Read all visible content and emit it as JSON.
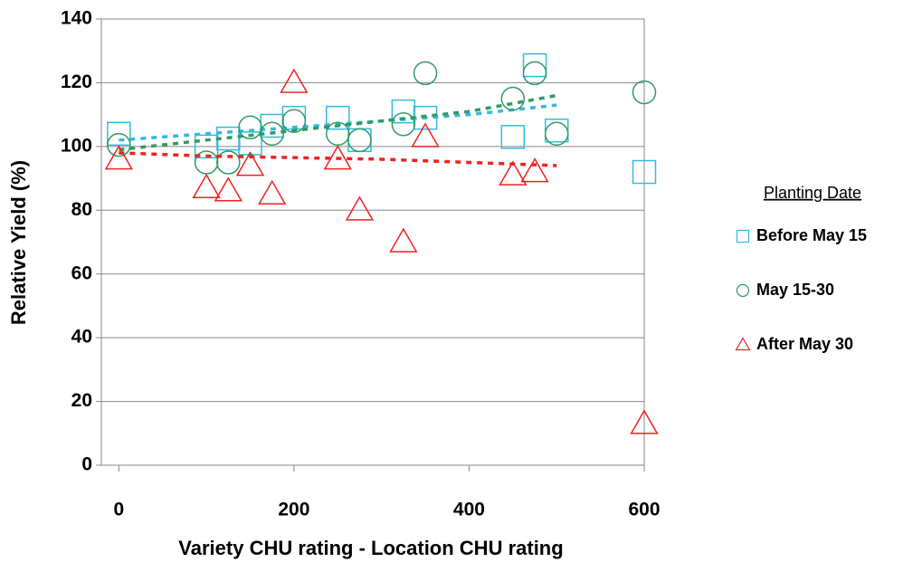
{
  "chart_data": {
    "type": "scatter",
    "xlabel": "Variety CHU rating - Location CHU rating",
    "ylabel": "Relative Yield (%)",
    "legend_title": "Planting Date",
    "legend_position": "right",
    "xlim": [
      -20,
      600
    ],
    "xticks": [
      0,
      200,
      400,
      600
    ],
    "ylim": [
      0,
      140
    ],
    "yticks": [
      0,
      20,
      40,
      60,
      80,
      100,
      120,
      140
    ],
    "grid": true,
    "series": [
      {
        "name": "Before May 15",
        "color": "#33bbdd",
        "marker": "square",
        "x": [
          0,
          100,
          125,
          150,
          175,
          200,
          250,
          275,
          325,
          350,
          450,
          475,
          500,
          600
        ],
        "values": [
          104,
          100,
          102.5,
          101,
          106.5,
          109,
          109,
          102,
          111,
          109,
          103,
          125.5,
          105,
          92
        ],
        "trend": {
          "x": [
            0,
            100,
            200,
            300,
            400,
            500
          ],
          "values": [
            102,
            104,
            106,
            108,
            110,
            113
          ]
        }
      },
      {
        "name": "May 15-30",
        "color": "#339966",
        "marker": "circle",
        "x": [
          0,
          100,
          125,
          150,
          175,
          200,
          250,
          275,
          325,
          350,
          450,
          475,
          500,
          600
        ],
        "values": [
          100.5,
          95,
          95,
          106,
          104,
          108,
          104,
          102,
          107,
          123,
          115,
          123,
          104,
          117
        ],
        "trend": {
          "x": [
            0,
            100,
            200,
            300,
            400,
            500
          ],
          "values": [
            99,
            102,
            105,
            108,
            111,
            116
          ]
        }
      },
      {
        "name": "After May 30",
        "color": "#ee2222",
        "marker": "triangle",
        "x": [
          0,
          100,
          125,
          150,
          175,
          200,
          250,
          275,
          325,
          350,
          450,
          475,
          600
        ],
        "values": [
          96,
          87,
          86,
          94,
          85,
          120,
          96,
          80,
          70,
          103,
          91,
          92,
          13
        ],
        "trend": {
          "x": [
            0,
            100,
            200,
            300,
            400,
            500
          ],
          "values": [
            98,
            97,
            96.5,
            96,
            95,
            94
          ]
        }
      }
    ]
  }
}
